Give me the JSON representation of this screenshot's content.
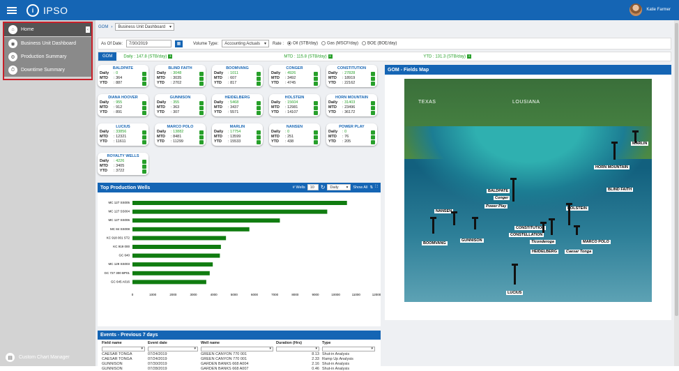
{
  "app": {
    "title": "IPSO",
    "user": "Katie Farmer"
  },
  "sidebar": {
    "items": [
      {
        "label": "Home"
      },
      {
        "label": "Business Unit Dashboard"
      },
      {
        "label": "Production Summary"
      },
      {
        "label": "Downtime Summary"
      }
    ],
    "footer": "Custom Chart Manager"
  },
  "breadcrumb": {
    "root": "GOM",
    "view": "Business Unit Dashboard"
  },
  "filters": {
    "asof_label": "As Of Date:",
    "asof_value": "7/30/2019",
    "volume_label": "Volume Type:",
    "volume_value": "Accounting Actuals",
    "rate_label": "Rate :",
    "rates": [
      "Oil (STB/day)",
      "Gas (MSCF/day)",
      "BOE (BOE/day)"
    ]
  },
  "summary": {
    "tag": "GOM",
    "daily": "Daily : 147.8 (STB/day)",
    "mtd": "MTD : 115.8 (STB/day)",
    "ytd": "YTD : 131.3 (STB/day)"
  },
  "cards": [
    {
      "name": "BALDPATE",
      "daily": "0",
      "mtd": "364",
      "ytd": "887"
    },
    {
      "name": "BLIND FAITH",
      "daily": "3048",
      "mtd": "3035",
      "ytd": "2702"
    },
    {
      "name": "BOOMVANG",
      "daily": "1011",
      "mtd": "607",
      "ytd": "817"
    },
    {
      "name": "CONGER",
      "daily": "4926",
      "mtd": "3492",
      "ytd": "4745"
    },
    {
      "name": "CONSTITUTION",
      "daily": "27828",
      "mtd": "18919",
      "ytd": "22162"
    },
    {
      "name": "DIANA HOOVER",
      "daily": "955",
      "mtd": "912",
      "ytd": "891"
    },
    {
      "name": "GUNNISON",
      "daily": "355",
      "mtd": "363",
      "ytd": "307"
    },
    {
      "name": "HEIDELBERG",
      "daily": "5468",
      "mtd": "3437",
      "ytd": "5571"
    },
    {
      "name": "HOLSTEIN",
      "daily": "15604",
      "mtd": "12981",
      "ytd": "14107"
    },
    {
      "name": "HORN MOUNTAIN",
      "daily": "31403",
      "mtd": "23496",
      "ytd": "36172"
    },
    {
      "name": "LUCIUS",
      "daily": "33856",
      "mtd": "12321",
      "ytd": "11611"
    },
    {
      "name": "MARCO POLO",
      "daily": "13882",
      "mtd": "8481",
      "ytd": "11299"
    },
    {
      "name": "MARLIN",
      "daily": "17754",
      "mtd": "13599",
      "ytd": "15533"
    },
    {
      "name": "NANSEN",
      "daily": "0",
      "mtd": "251",
      "ytd": "438"
    },
    {
      "name": "POWER PLAY",
      "daily": "0",
      "mtd": "76",
      "ytd": "205"
    },
    {
      "name": "ROYALTY WELLS",
      "daily": "4226",
      "mtd": "3405",
      "ytd": "3722"
    }
  ],
  "card_labels": {
    "daily": "Daily",
    "mtd": "MTD",
    "ytd": "YTD"
  },
  "tpw": {
    "title": "Top Production Wells",
    "wells_label": "# Wells",
    "wells_value": "10",
    "period": "Daily",
    "show_all": "Show All"
  },
  "chart_data": {
    "type": "bar",
    "orientation": "horizontal",
    "categories": [
      "MC 127 SS005",
      "MC 127 SS004",
      "MC 127 SS006",
      "MC 84 SS008",
      "KC 918 001 ST2",
      "KC 919 000",
      "GC 640",
      "MC 129 SS003",
      "GC 727 300 BP01",
      "GC 645 A016"
    ],
    "values": [
      10550,
      9580,
      7250,
      5750,
      4600,
      4350,
      4300,
      3950,
      3800,
      3630
    ],
    "xticks": [
      0,
      1000,
      2000,
      3000,
      4000,
      5000,
      6000,
      7000,
      8000,
      9000,
      10000,
      11000,
      12000
    ],
    "xlim": [
      0,
      12000
    ],
    "color": "#107c10"
  },
  "events": {
    "title": "Events - Previous 7 days",
    "columns": [
      "Field name",
      "Event date",
      "Well name",
      "Duration (Hrs)",
      "Type"
    ],
    "rows": [
      [
        "CAESAR TONGA",
        "07/24/2019",
        "GREEN CANYON 770 001",
        "8.13",
        "Shut-in Analysis"
      ],
      [
        "CAESAR TONGA",
        "07/24/2019",
        "GREEN CANYON 770 001",
        "2.33",
        "Ramp Up Analysis"
      ],
      [
        "GUNNISON",
        "07/30/2019",
        "GARDEN BANKS 668 A004",
        "2.16",
        "Shut-in Analysis"
      ],
      [
        "GUNNISON",
        "07/28/2019",
        "GARDEN BANKS 668 A007",
        "0.46",
        "Shut-in Analysis"
      ]
    ]
  },
  "map": {
    "title": "GOM - Fields Map",
    "states": [
      "TEXAS",
      "LOUSIANA"
    ],
    "labels": [
      "MARLIN",
      "HORN MOUNTAIN",
      "BLIND FAITH",
      "BALDPATE",
      "Conger",
      "Power Play",
      "NANSEN",
      "HOLSTEIN",
      "CONSTITUTION",
      "CONSTELLATION",
      "Ticonderoga",
      "GUNNISON",
      "BOOMVANG",
      "MARCO POLO",
      "HEIDELBERG",
      "Caesar Tonga",
      "LUCIUS"
    ]
  }
}
